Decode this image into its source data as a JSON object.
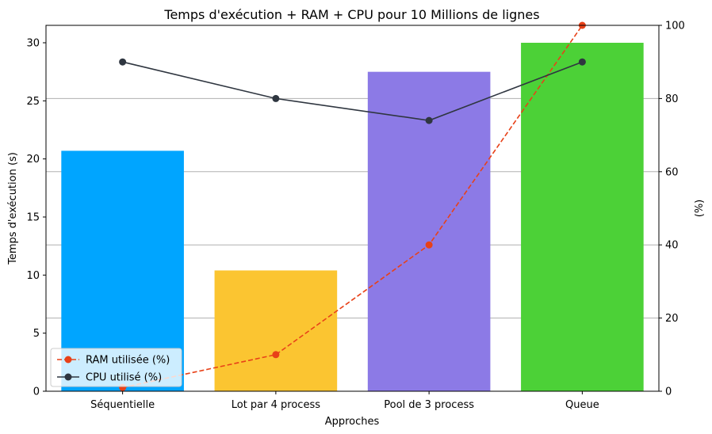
{
  "chart_data": {
    "type": "bar",
    "title": "Temps d'exécution + RAM + CPU pour 10 Millions de lignes",
    "xlabel": "Approches",
    "ylabel": "Temps d'exécution (s)",
    "y2label": "(%)",
    "categories": [
      "Séquentielle",
      "Lot par 4 process",
      "Pool de 3 process",
      "Queue"
    ],
    "bar_values": [
      20.7,
      10.4,
      27.5,
      30.0
    ],
    "bar_colors": [
      "#00a5ff",
      "#fbc531",
      "#8c7ae6",
      "#4cd137"
    ],
    "ylim": [
      0,
      31.5
    ],
    "yticks": [
      0,
      5,
      10,
      15,
      20,
      25,
      30
    ],
    "y2lim": [
      0,
      100
    ],
    "y2ticks": [
      0,
      20,
      40,
      60,
      80,
      100
    ],
    "grid": "horizontal, right axis",
    "legend_position": "lower-left",
    "series": [
      {
        "name": "RAM utilisée (%)",
        "axis": "right",
        "style": "dashed",
        "color": "#e84118",
        "values": [
          1,
          10,
          40,
          100
        ]
      },
      {
        "name": "CPU utilisé (%)",
        "axis": "right",
        "style": "solid",
        "color": "#2f3640",
        "values": [
          90,
          80,
          74,
          90
        ]
      }
    ]
  }
}
